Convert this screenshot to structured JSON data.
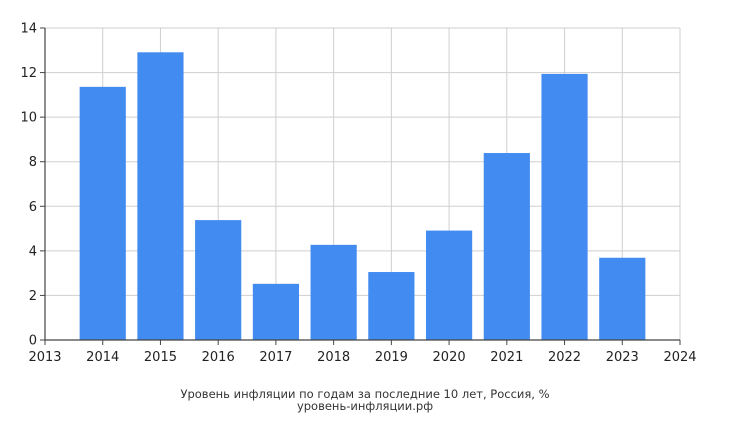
{
  "chart_data": {
    "type": "bar",
    "categories": [
      "2014",
      "2015",
      "2016",
      "2017",
      "2018",
      "2019",
      "2020",
      "2021",
      "2022",
      "2023"
    ],
    "values": [
      11.36,
      12.91,
      5.38,
      2.52,
      4.27,
      3.05,
      4.91,
      8.39,
      11.94,
      3.69
    ],
    "x_ticks": [
      "2013",
      "2014",
      "2015",
      "2016",
      "2017",
      "2018",
      "2019",
      "2020",
      "2021",
      "2022",
      "2023",
      "2024"
    ],
    "y_ticks": [
      "0",
      "2",
      "4",
      "6",
      "8",
      "10",
      "12",
      "14"
    ],
    "xlim": [
      2013,
      2024
    ],
    "ylim": [
      0,
      14
    ],
    "grid": true,
    "bar_color": "#428bf0",
    "caption": "Уровень инфляции по годам за последние 10 лет, Россия, %",
    "source": "уровень-инфляции.рф"
  }
}
